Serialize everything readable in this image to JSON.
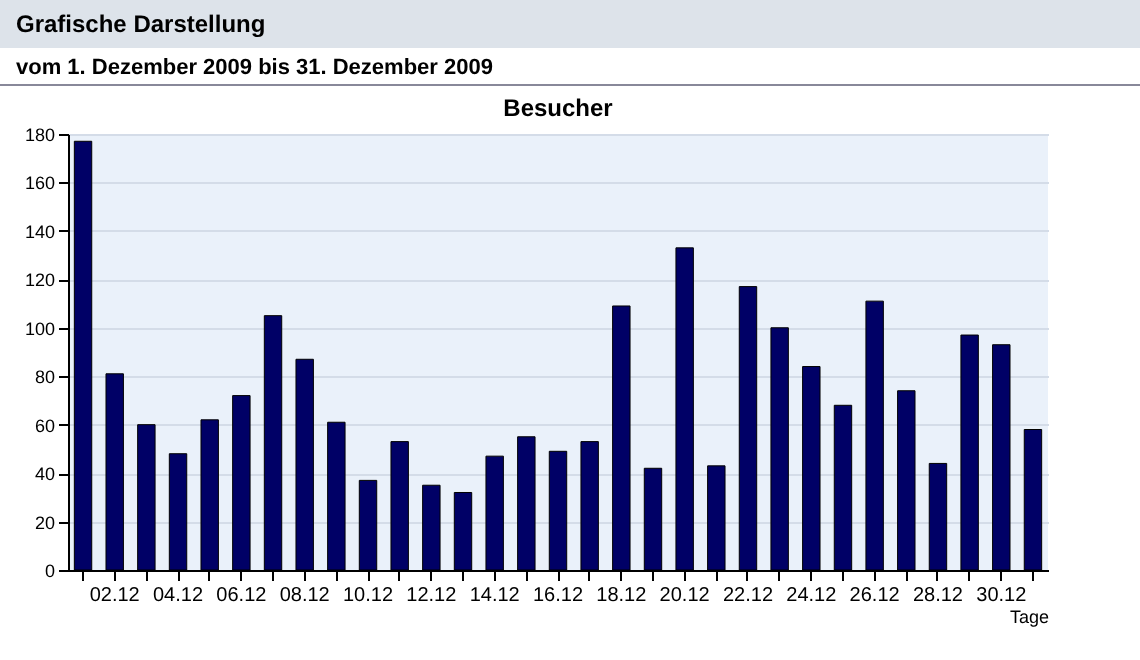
{
  "chart_data": {
    "type": "bar",
    "title": "Besucher",
    "xlabel": "Tage",
    "annotations": [
      "Grafische Darstellung",
      "vom 1. Dezember 2009  bis 31. Dezember 2009"
    ],
    "categories": [
      null,
      "02.12",
      null,
      "04.12",
      null,
      "06.12",
      null,
      "08.12",
      null,
      "10.12",
      null,
      "12.12",
      null,
      "14.12",
      null,
      "16.12",
      null,
      "18.12",
      null,
      "20.12",
      null,
      "22.12",
      null,
      "24.12",
      null,
      "26.12",
      null,
      "28.12",
      null,
      "30.12",
      null
    ],
    "values": [
      177,
      81,
      60,
      48,
      62,
      72,
      105,
      87,
      61,
      37,
      53,
      35,
      32,
      47,
      55,
      49,
      53,
      109,
      42,
      133,
      43,
      117,
      100,
      84,
      68,
      111,
      74,
      44,
      97,
      93,
      58
    ],
    "color": "#000066",
    "ylim": [
      0,
      180
    ],
    "yticks": [
      0,
      20,
      40,
      60,
      80,
      100,
      120,
      140,
      160,
      180
    ],
    "grid": "y"
  }
}
